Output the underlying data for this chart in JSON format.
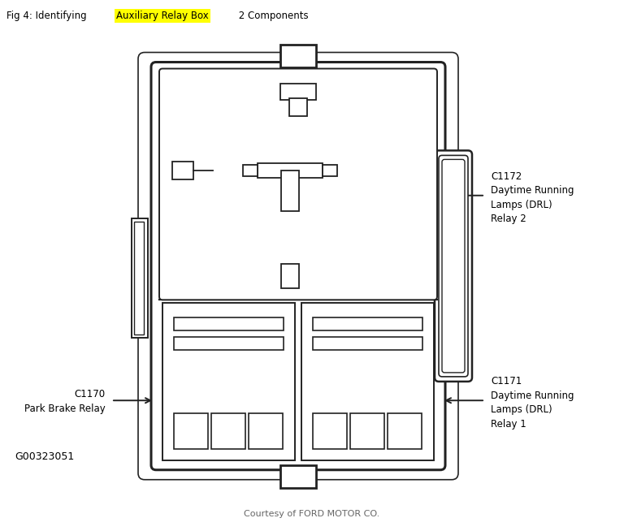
{
  "title_prefix": "Fig 4: Identifying ",
  "title_highlight": "Auxiliary Relay Box",
  "title_suffix": " 2 Components",
  "title_highlight_color": "#ffff00",
  "title_bar_color": "#c8c8c8",
  "diagram_bg": "#ffffff",
  "footer_text": "Courtesy of FORD MOTOR CO.",
  "figure_id": "G00323051",
  "line_color": "#222222",
  "line_width": 1.6
}
